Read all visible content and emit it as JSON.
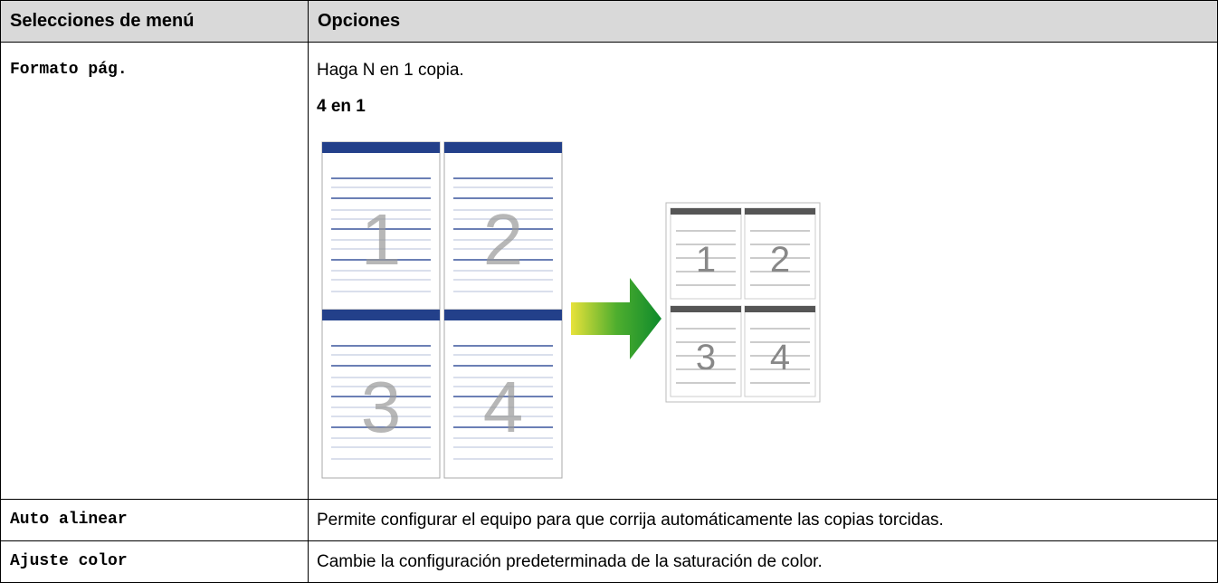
{
  "table": {
    "header": [
      "Selecciones de menú",
      "Opciones"
    ],
    "rows": [
      {
        "menu": "Formato pág.",
        "description": "Haga N en 1 copia.",
        "example_title": "4 en 1",
        "illustration_pages": [
          "1",
          "2",
          "3",
          "4"
        ]
      },
      {
        "menu": "Auto alinear",
        "description": "Permite configurar el equipo para que corrija automáticamente las copias torcidas."
      },
      {
        "menu": "Ajuste color",
        "description": "Cambie la configuración predeterminada de la saturación de color."
      }
    ]
  }
}
